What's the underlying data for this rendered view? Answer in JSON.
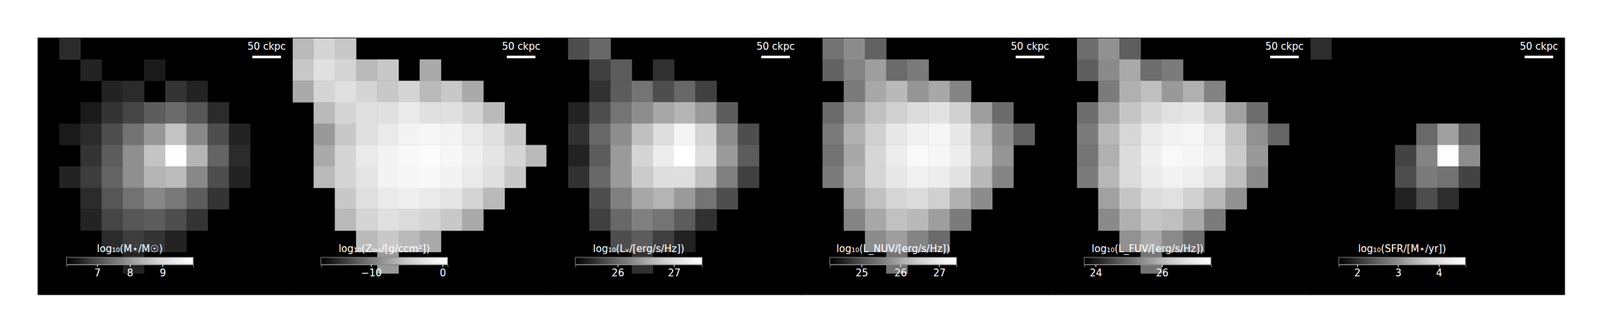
{
  "chart_data": [
    {
      "type": "heatmap",
      "tick_labels": false,
      "xlim": [
        0,
        445
      ],
      "ylim": [
        0,
        445
      ],
      "scale_bar": {
        "label": "50 ckpc",
        "value": 50
      },
      "colorbar": {
        "label": "log₁₀(M⋆/M☉)",
        "range": [
          6.06,
          9.94
        ],
        "ticks": [
          7,
          8,
          9
        ]
      },
      "cells": [
        [
          null,
          6.6,
          null,
          null,
          null,
          null,
          null,
          null,
          null,
          null,
          null,
          null
        ],
        [
          null,
          null,
          6.5,
          null,
          null,
          6.4,
          null,
          null,
          null,
          null,
          null,
          null
        ],
        [
          null,
          null,
          null,
          6.5,
          6.6,
          null,
          6.7,
          6.5,
          null,
          null,
          null,
          null
        ],
        [
          null,
          null,
          6.4,
          6.7,
          6.9,
          7.2,
          7.4,
          7.1,
          6.6,
          null,
          null,
          null
        ],
        [
          null,
          6.4,
          6.6,
          7.0,
          7.5,
          8.0,
          8.6,
          7.8,
          7.0,
          6.5,
          null,
          null
        ],
        [
          null,
          null,
          6.7,
          7.2,
          7.9,
          8.6,
          9.9,
          8.4,
          7.3,
          6.6,
          null,
          null
        ],
        [
          null,
          6.5,
          6.8,
          7.3,
          7.9,
          8.4,
          8.5,
          7.8,
          7.0,
          6.5,
          null,
          null
        ],
        [
          null,
          null,
          6.6,
          7.1,
          7.5,
          7.8,
          7.6,
          7.2,
          6.7,
          null,
          null,
          null
        ],
        [
          null,
          null,
          6.5,
          6.9,
          7.1,
          7.2,
          7.0,
          6.7,
          null,
          null,
          null,
          null
        ],
        [
          null,
          null,
          null,
          6.6,
          6.8,
          6.7,
          6.5,
          null,
          null,
          null,
          null,
          null
        ],
        [
          null,
          null,
          null,
          null,
          6.5,
          null,
          null,
          null,
          null,
          null,
          null,
          null
        ],
        [
          null,
          null,
          null,
          null,
          null,
          null,
          null,
          null,
          null,
          null,
          null,
          null
        ]
      ]
    },
    {
      "type": "heatmap",
      "tick_labels": false,
      "xlim": [
        0,
        445
      ],
      "ylim": [
        0,
        445
      ],
      "scale_bar": {
        "label": "50 ckpc",
        "value": 50
      },
      "colorbar": {
        "label": "log₁₀(Zₗₒₛ/[g/ccm²])",
        "range": [
          -17,
          0.7
        ],
        "ticks": [
          {
            "value": -10,
            "label": "−10"
          },
          0
        ]
      },
      "cells": [
        [
          -6,
          -4,
          -5,
          null,
          null,
          null,
          null,
          null,
          null,
          null,
          null,
          null
        ],
        [
          -5,
          -3,
          -4,
          -6,
          -5,
          null,
          -7,
          null,
          null,
          null,
          null,
          null
        ],
        [
          -7,
          -4,
          -3,
          -4,
          -5,
          -4,
          -6,
          -5,
          -7,
          null,
          null,
          null
        ],
        [
          null,
          -6,
          -4,
          -3,
          -3,
          -2,
          -3,
          -3,
          -4,
          -6,
          null,
          null
        ],
        [
          null,
          -8,
          -5,
          -3,
          -2,
          -1,
          -0.5,
          -1,
          -2,
          -3,
          -5,
          null
        ],
        [
          null,
          -7,
          -4,
          -2,
          -1,
          -0.3,
          0.2,
          -0.5,
          -1.5,
          -2.5,
          -4,
          -6
        ],
        [
          null,
          -6,
          -4,
          -2.5,
          -1,
          -0.5,
          -0.3,
          -1,
          -2,
          -3,
          -5,
          null
        ],
        [
          null,
          null,
          -5,
          -3,
          -2,
          -1.5,
          -2,
          -2.5,
          -4,
          -6,
          null,
          null
        ],
        [
          null,
          null,
          -6,
          -4,
          -3,
          -3.5,
          -4,
          -5,
          -7,
          null,
          null,
          null
        ],
        [
          null,
          null,
          null,
          -6,
          -5,
          -6,
          -7,
          null,
          null,
          null,
          null,
          null
        ],
        [
          null,
          null,
          null,
          null,
          -8,
          null,
          null,
          null,
          null,
          null,
          null,
          null
        ],
        [
          null,
          null,
          null,
          null,
          null,
          null,
          null,
          null,
          null,
          null,
          null,
          null
        ]
      ]
    },
    {
      "type": "heatmap",
      "tick_labels": false,
      "xlim": [
        0,
        445
      ],
      "ylim": [
        0,
        445
      ],
      "scale_bar": {
        "label": "50 ckpc",
        "value": 50
      },
      "colorbar": {
        "label": "log₁₀(Lᵥ/[erg/s/Hz])",
        "range": [
          25.25,
          27.5
        ],
        "ticks": [
          26,
          27
        ]
      },
      "cells": [
        [
          null,
          25.8,
          26.0,
          null,
          null,
          null,
          null,
          null,
          null,
          null,
          null,
          null
        ],
        [
          null,
          null,
          25.7,
          25.9,
          null,
          25.6,
          null,
          null,
          null,
          null,
          null,
          null
        ],
        [
          null,
          null,
          25.6,
          25.9,
          26.1,
          25.8,
          26.0,
          25.7,
          null,
          null,
          null,
          null
        ],
        [
          null,
          25.5,
          25.8,
          26.1,
          26.3,
          26.5,
          26.6,
          26.4,
          25.9,
          null,
          null,
          null
        ],
        [
          null,
          25.6,
          26.0,
          26.3,
          26.7,
          27.0,
          27.3,
          26.9,
          26.3,
          25.8,
          null,
          null
        ],
        [
          null,
          25.5,
          25.9,
          26.4,
          26.9,
          27.2,
          27.5,
          27.0,
          26.4,
          25.9,
          null,
          null
        ],
        [
          null,
          25.6,
          26.0,
          26.4,
          26.8,
          27.0,
          27.0,
          26.7,
          26.2,
          25.7,
          null,
          null
        ],
        [
          null,
          null,
          25.8,
          26.2,
          26.5,
          26.6,
          26.4,
          26.1,
          25.8,
          null,
          null,
          null
        ],
        [
          null,
          null,
          25.7,
          26.0,
          26.2,
          26.1,
          25.9,
          25.6,
          null,
          null,
          null,
          null
        ],
        [
          null,
          null,
          null,
          25.8,
          25.9,
          25.7,
          25.5,
          null,
          null,
          null,
          null,
          null
        ],
        [
          null,
          null,
          null,
          null,
          25.6,
          null,
          null,
          null,
          null,
          null,
          null,
          null
        ],
        [
          null,
          null,
          null,
          null,
          null,
          null,
          null,
          null,
          null,
          null,
          null,
          null
        ]
      ]
    },
    {
      "type": "heatmap",
      "tick_labels": false,
      "xlim": [
        0,
        445
      ],
      "ylim": [
        0,
        445
      ],
      "scale_bar": {
        "label": "50 ckpc",
        "value": 50
      },
      "colorbar": {
        "label": "log₁₀(L_NUV/[erg/s/Hz])",
        "range": [
          24.18,
          27.45
        ],
        "ticks": [
          25,
          26,
          27
        ]
      },
      "cells": [
        [
          null,
          25.4,
          25.7,
          25.2,
          null,
          null,
          null,
          null,
          null,
          null,
          null,
          null
        ],
        [
          null,
          25.2,
          25.6,
          25.9,
          25.3,
          25.5,
          null,
          null,
          null,
          null,
          null,
          null
        ],
        [
          null,
          null,
          25.5,
          26.0,
          26.2,
          25.8,
          26.0,
          25.6,
          null,
          null,
          null,
          null
        ],
        [
          null,
          25.3,
          25.9,
          26.3,
          26.5,
          26.7,
          26.8,
          26.5,
          25.9,
          25.3,
          null,
          null
        ],
        [
          null,
          25.5,
          26.1,
          26.5,
          26.9,
          27.1,
          27.2,
          26.9,
          26.3,
          25.7,
          25.2,
          null
        ],
        [
          null,
          25.4,
          26.0,
          26.6,
          27.0,
          27.3,
          27.2,
          27.0,
          26.4,
          25.8,
          null,
          null
        ],
        [
          null,
          25.5,
          26.1,
          26.6,
          26.9,
          27.1,
          27.0,
          26.8,
          26.2,
          25.6,
          null,
          null
        ],
        [
          null,
          null,
          25.9,
          26.3,
          26.6,
          26.7,
          26.5,
          26.1,
          25.7,
          null,
          null,
          null
        ],
        [
          null,
          null,
          25.6,
          26.0,
          26.3,
          26.2,
          25.9,
          25.5,
          null,
          null,
          null,
          null
        ],
        [
          null,
          null,
          null,
          25.7,
          25.9,
          25.6,
          25.3,
          null,
          null,
          null,
          null,
          null
        ],
        [
          null,
          null,
          null,
          null,
          25.4,
          null,
          null,
          null,
          null,
          null,
          null,
          null
        ],
        [
          null,
          null,
          null,
          null,
          null,
          null,
          null,
          null,
          null,
          null,
          null,
          null
        ]
      ]
    },
    {
      "type": "heatmap",
      "tick_labels": false,
      "xlim": [
        0,
        445
      ],
      "ylim": [
        0,
        445
      ],
      "scale_bar": {
        "label": "50 ckpc",
        "value": 50
      },
      "colorbar": {
        "label": "log₁₀(L_FUV/[erg/s/Hz])",
        "range": [
          23.66,
          27.48
        ],
        "ticks": [
          24,
          26
        ]
      },
      "cells": [
        [
          null,
          25.0,
          25.5,
          24.8,
          null,
          null,
          null,
          null,
          null,
          null,
          null,
          null
        ],
        [
          null,
          24.8,
          25.4,
          25.8,
          25.0,
          25.2,
          null,
          null,
          null,
          null,
          null,
          null
        ],
        [
          null,
          null,
          25.2,
          25.9,
          26.1,
          25.6,
          25.9,
          25.3,
          null,
          null,
          null,
          null
        ],
        [
          null,
          25.0,
          25.7,
          26.2,
          26.5,
          26.7,
          26.8,
          26.4,
          25.7,
          25.0,
          null,
          null
        ],
        [
          null,
          25.2,
          26.0,
          26.5,
          26.9,
          27.1,
          27.2,
          26.9,
          26.2,
          25.5,
          24.9,
          null
        ],
        [
          null,
          25.1,
          25.9,
          26.6,
          27.0,
          27.3,
          27.2,
          27.0,
          26.3,
          25.6,
          null,
          null
        ],
        [
          null,
          25.2,
          26.0,
          26.6,
          26.9,
          27.1,
          27.0,
          26.7,
          26.1,
          25.4,
          null,
          null
        ],
        [
          null,
          null,
          25.7,
          26.2,
          26.6,
          26.7,
          26.4,
          26.0,
          25.5,
          null,
          null,
          null
        ],
        [
          null,
          null,
          25.4,
          25.9,
          26.2,
          26.1,
          25.8,
          25.2,
          null,
          null,
          null,
          null
        ],
        [
          null,
          null,
          null,
          25.5,
          25.8,
          25.4,
          25.0,
          null,
          null,
          null,
          null,
          null
        ],
        [
          null,
          null,
          null,
          null,
          25.1,
          null,
          null,
          null,
          null,
          null,
          null,
          null
        ],
        [
          null,
          null,
          null,
          null,
          null,
          null,
          null,
          null,
          null,
          null,
          null,
          null
        ]
      ]
    },
    {
      "type": "heatmap",
      "tick_labels": false,
      "xlim": [
        0,
        445
      ],
      "ylim": [
        0,
        445
      ],
      "scale_bar": {
        "label": "50 ckpc",
        "value": 50
      },
      "colorbar": {
        "label": "log₁₀(SFR/[M⋆/yr])",
        "range": [
          1.55,
          4.65
        ],
        "ticks": [
          2,
          3,
          4
        ]
      },
      "cells": [
        [
          2.0,
          null,
          null,
          null,
          null,
          null,
          null,
          null,
          null,
          null,
          null,
          null
        ],
        [
          null,
          null,
          null,
          null,
          null,
          null,
          null,
          null,
          null,
          null,
          null,
          null
        ],
        [
          null,
          null,
          null,
          null,
          null,
          null,
          null,
          null,
          null,
          null,
          null,
          null
        ],
        [
          null,
          null,
          null,
          null,
          null,
          null,
          null,
          null,
          null,
          null,
          null,
          null
        ],
        [
          null,
          null,
          null,
          null,
          null,
          2.6,
          3.2,
          2.5,
          null,
          null,
          null,
          null
        ],
        [
          null,
          null,
          null,
          null,
          2.2,
          2.9,
          4.6,
          3.0,
          null,
          null,
          null,
          null
        ],
        [
          null,
          null,
          null,
          null,
          2.3,
          2.8,
          2.7,
          2.2,
          null,
          null,
          null,
          null
        ],
        [
          null,
          null,
          null,
          null,
          1.9,
          2.3,
          2.0,
          null,
          null,
          null,
          null,
          null
        ],
        [
          null,
          null,
          null,
          null,
          null,
          null,
          null,
          null,
          null,
          null,
          null,
          null
        ],
        [
          null,
          null,
          null,
          null,
          null,
          null,
          null,
          null,
          null,
          null,
          null,
          null
        ],
        [
          null,
          null,
          null,
          null,
          null,
          null,
          null,
          null,
          null,
          null,
          null,
          null
        ],
        [
          null,
          null,
          null,
          null,
          null,
          null,
          null,
          null,
          null,
          null,
          null,
          null
        ]
      ]
    }
  ]
}
